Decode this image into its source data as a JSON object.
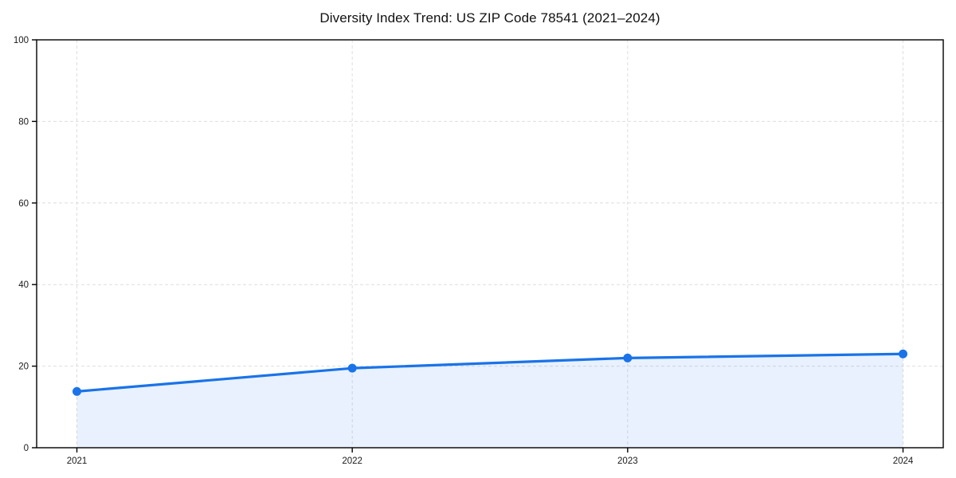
{
  "figure": {
    "background": "#ffffff"
  },
  "chart_data": {
    "type": "line",
    "title": "Diversity Index Trend: US ZIP Code 78541 (2021–2024)",
    "categories": [
      "2021",
      "2022",
      "2023",
      "2024"
    ],
    "series": [
      {
        "name": "Diversity Index",
        "values": [
          13.8,
          19.5,
          22.0,
          23.0
        ]
      }
    ],
    "xlabel": "",
    "ylabel": "",
    "ylim": [
      0,
      100
    ],
    "yticks": [
      0,
      20,
      40,
      60,
      80,
      100
    ],
    "grid": true,
    "grid_style": "dashed",
    "grid_both_axes": true,
    "legend": "none",
    "marker": "circle",
    "area_fill": true,
    "colors": {
      "line": "#1a73e8",
      "marker": "#1a73e8",
      "area_fill": "rgba(26,115,232,0.10)",
      "grid": "#dedede",
      "axis": "#000000",
      "tick_label": "#1a1a1a",
      "title": "#111111",
      "background": "#ffffff"
    }
  }
}
